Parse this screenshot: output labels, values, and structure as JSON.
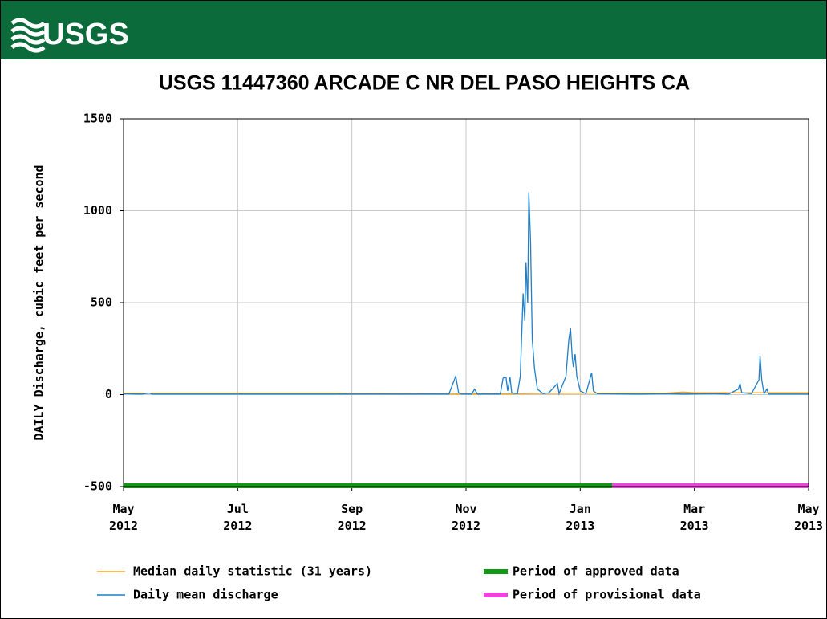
{
  "header": {
    "logo": "USGS"
  },
  "chart_data": {
    "type": "line",
    "title": "USGS 11447360 ARCADE C NR DEL PASO HEIGHTS CA",
    "y_label": "DAILY Discharge, cubic feet per second",
    "xlim": [
      0,
      12
    ],
    "ylim": [
      -500,
      1500
    ],
    "xticks": [
      {
        "value": 0,
        "label": "May 2012"
      },
      {
        "value": 2,
        "label": "Jul 2012"
      },
      {
        "value": 4,
        "label": "Sep 2012"
      },
      {
        "value": 6,
        "label": "Nov 2012"
      },
      {
        "value": 8,
        "label": "Jan 2013"
      },
      {
        "value": 10,
        "label": "Mar 2013"
      },
      {
        "value": 12,
        "label": "May 2013"
      }
    ],
    "yticks": [
      -500,
      0,
      500,
      1000,
      1500
    ],
    "grid": true,
    "series": [
      {
        "name": "Median daily statistic (31 years)",
        "color": "#f5a623",
        "x": [
          0,
          3.7,
          3.9,
          4.4,
          5.7,
          6.8,
          7.2,
          8.2,
          9.5,
          9.8,
          10,
          12
        ],
        "values": [
          8,
          8,
          5,
          6,
          3,
          4,
          6,
          8,
          8,
          14,
          10,
          10
        ]
      },
      {
        "name": "Daily mean discharge",
        "color": "#1f7fc8",
        "x": [
          0,
          0.3,
          0.45,
          0.5,
          5.7,
          5.77,
          5.82,
          5.87,
          5.92,
          6.1,
          6.15,
          6.2,
          6.6,
          6.65,
          6.7,
          6.73,
          6.77,
          6.8,
          6.9,
          6.95,
          7.0,
          7.03,
          7.05,
          7.08,
          7.1,
          7.13,
          7.16,
          7.2,
          7.25,
          7.35,
          7.45,
          7.6,
          7.63,
          7.75,
          7.8,
          7.83,
          7.86,
          7.88,
          7.91,
          7.94,
          8.0,
          8.1,
          8.2,
          8.23,
          8.3,
          9.0,
          9.5,
          9.8,
          10.3,
          10.6,
          10.77,
          10.8,
          10.83,
          11.0,
          11.13,
          11.15,
          11.18,
          11.22,
          11.27,
          11.3,
          12
        ],
        "values": [
          5,
          3,
          8,
          3,
          3,
          60,
          100,
          10,
          3,
          3,
          30,
          3,
          3,
          90,
          95,
          20,
          95,
          10,
          5,
          100,
          550,
          400,
          720,
          500,
          1100,
          830,
          300,
          140,
          30,
          5,
          10,
          60,
          5,
          100,
          300,
          360,
          200,
          150,
          220,
          100,
          20,
          5,
          120,
          20,
          5,
          3,
          5,
          3,
          5,
          3,
          30,
          60,
          10,
          5,
          80,
          210,
          80,
          5,
          30,
          3,
          3
        ]
      }
    ],
    "periods": [
      {
        "name": "Period of approved data",
        "color": "#119a11",
        "start": 0,
        "end": 8.56
      },
      {
        "name": "Period of provisional data",
        "color": "#ee44dd",
        "start": 8.56,
        "end": 12
      }
    ]
  }
}
